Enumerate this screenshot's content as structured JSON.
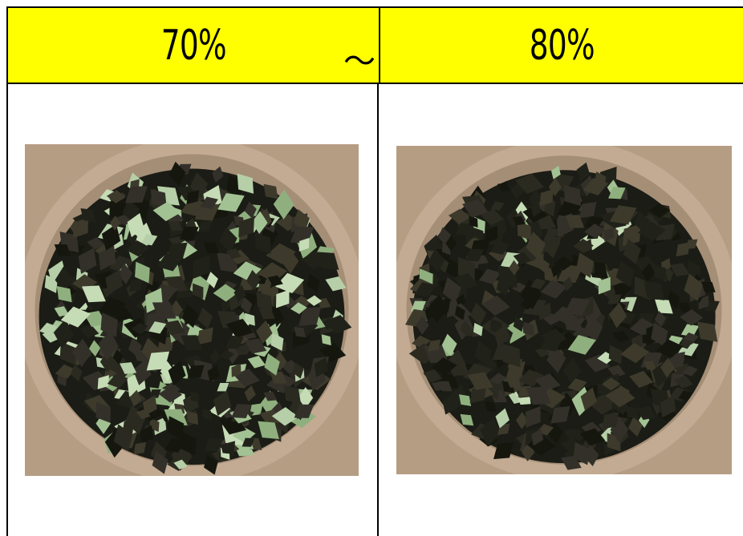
{
  "columns": [
    {
      "label": "70%",
      "separator": "～"
    },
    {
      "label": "80%"
    }
  ],
  "colors": {
    "header_bg": "#ffff00",
    "border": "#000000",
    "bowl": "#b9a087",
    "seed_dark": "#1c1e16",
    "seed_green": "#aecba0"
  }
}
